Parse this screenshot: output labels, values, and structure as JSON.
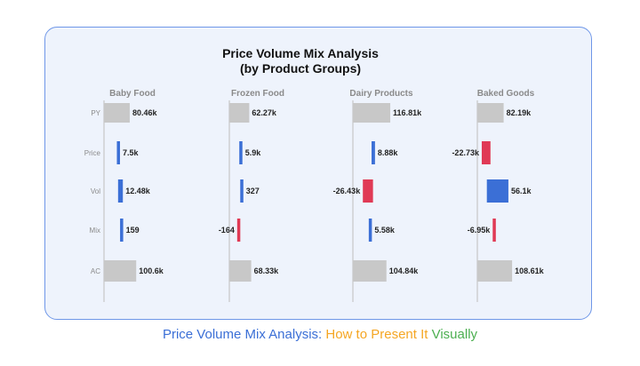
{
  "chart_data": {
    "type": "bar",
    "title": "Price Volume Mix Analysis",
    "subtitle": "(by Product Groups)",
    "row_labels": [
      "PY",
      "Price",
      "Vol",
      "Mix",
      "AC"
    ],
    "groups": [
      {
        "name": "Baby Food",
        "values": [
          80.46,
          7.5,
          12.48,
          0.159,
          100.6
        ],
        "labels": [
          "80.46k",
          "7.5k",
          "12.48k",
          "159",
          "100.6k"
        ]
      },
      {
        "name": "Frozen Food",
        "values": [
          62.27,
          5.9,
          0.327,
          -0.164,
          68.33
        ],
        "labels": [
          "62.27k",
          "5.9k",
          "327",
          "-164",
          "68.33k"
        ]
      },
      {
        "name": "Dairy Products",
        "values": [
          116.81,
          8.88,
          -26.43,
          5.58,
          104.84
        ],
        "labels": [
          "116.81k",
          "8.88k",
          "-26.43k",
          "5.58k",
          "104.84k"
        ]
      },
      {
        "name": "Baked Goods",
        "values": [
          82.19,
          -22.73,
          56.1,
          -6.95,
          108.61
        ],
        "labels": [
          "82.19k",
          "-22.73k",
          "56.1k",
          "-6.95k",
          "108.61k"
        ]
      }
    ],
    "colors": {
      "total": "#c8c8c8",
      "positive": "#3b6fd6",
      "negative": "#e03a55",
      "axis": "#bdbdbd",
      "text": "#222222",
      "muted": "#8a8a8a"
    }
  },
  "caption": {
    "part1": "Price Volume Mix Analysis:",
    "part2": "How to Present It",
    "part3": "Visually",
    "color1": "#3b6fd6",
    "color2": "#f5a623",
    "color3": "#4caf50"
  }
}
